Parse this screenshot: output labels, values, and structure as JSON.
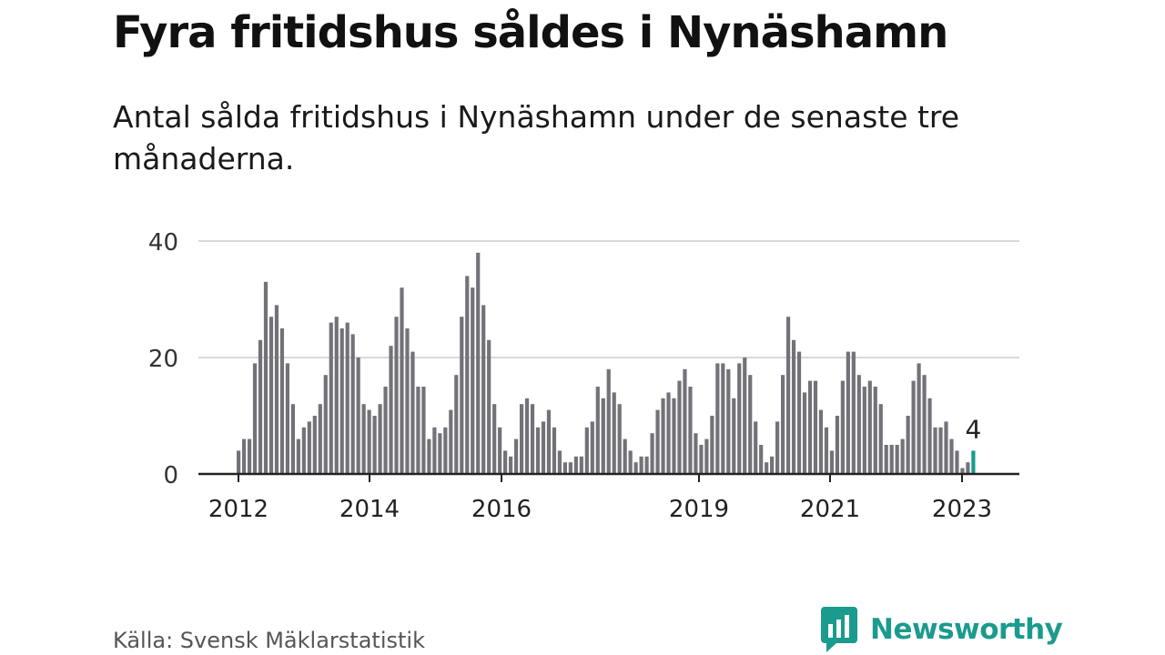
{
  "title": "Fyra fritidshus såldes i Nynäshamn",
  "subtitle": "Antal sålda fritidshus i Nynäshamn under de senaste tre månaderna.",
  "source": "Källa: Svensk Mäklarstatistik",
  "brand": "Newsworthy",
  "colors": {
    "bar": "#737278",
    "highlight": "#1a9b8d",
    "grid": "#d9d9d9",
    "axis": "#222222",
    "brand": "#1a9b8d"
  },
  "chart_data": {
    "type": "bar",
    "title": "",
    "xlabel": "",
    "ylabel": "",
    "ylim": [
      0,
      40
    ],
    "yticks": [
      0,
      20,
      40
    ],
    "grid": true,
    "x_tick_labels": [
      "2012",
      "2014",
      "2016",
      "2019",
      "2021",
      "2023"
    ],
    "highlight_label": "4",
    "series": [
      {
        "values": [
          4,
          6,
          6,
          19,
          23,
          33,
          27,
          29,
          25,
          19,
          12,
          6,
          8,
          9,
          10,
          12,
          17,
          26,
          27,
          25,
          26,
          24,
          20,
          12,
          11,
          10,
          12,
          15,
          22,
          27,
          32,
          25,
          21,
          15,
          15,
          6,
          8,
          7,
          8,
          11,
          17,
          27,
          34,
          32,
          38,
          29,
          23,
          12,
          8,
          4,
          3,
          6,
          12,
          13,
          12,
          8,
          9,
          11,
          8,
          4,
          2,
          2,
          3,
          3,
          8,
          9,
          15,
          13,
          18,
          14,
          12,
          6,
          4,
          2,
          3,
          3,
          7,
          11,
          13,
          14,
          13,
          16,
          18,
          15,
          7,
          5,
          6,
          10,
          19,
          19,
          18,
          13,
          19,
          20,
          17,
          9,
          5,
          2,
          3,
          9,
          17,
          27,
          23,
          21,
          14,
          16,
          16,
          11,
          8,
          4,
          10,
          16,
          21,
          21,
          17,
          15,
          16,
          15,
          12,
          5,
          5,
          5,
          6,
          10,
          16,
          19,
          17,
          13,
          8,
          8,
          9,
          6,
          4,
          1,
          2,
          4
        ]
      }
    ]
  }
}
